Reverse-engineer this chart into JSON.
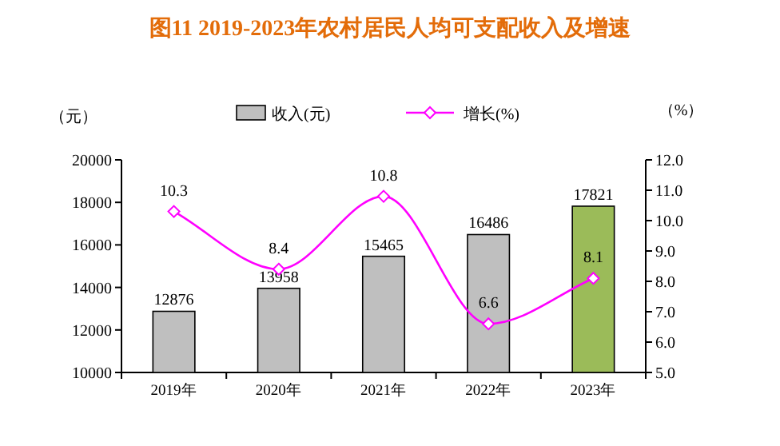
{
  "chart_data": {
    "type": "bar",
    "title": "图11 2019-2023年农村居民人均可支配收入及增速",
    "ylabel": "（元）",
    "y2label": "（%）",
    "categories": [
      "2019年",
      "2020年",
      "2021年",
      "2022年",
      "2023年"
    ],
    "series": [
      {
        "name": "收入(元)",
        "color": "#bfbfbf",
        "colors": [
          "#bfbfbf",
          "#bfbfbf",
          "#bfbfbf",
          "#bfbfbf",
          "#9bbb59"
        ],
        "values": [
          12876,
          13958,
          15465,
          16486,
          17821
        ]
      },
      {
        "name": "增长(%)",
        "type": "line",
        "axis": "y2",
        "color": "#ff00ff",
        "marker": "diamond",
        "values": [
          10.3,
          8.4,
          10.8,
          6.6,
          8.1
        ]
      }
    ],
    "ylim": [
      10000,
      20000
    ],
    "yticks": [
      10000,
      12000,
      14000,
      16000,
      18000,
      20000
    ],
    "y2lim": [
      5,
      12
    ],
    "y2ticks": [
      {
        "value": 5,
        "label": "5.0"
      },
      {
        "value": 6,
        "label": "6.0"
      },
      {
        "value": 7,
        "label": "7.0"
      },
      {
        "value": 8,
        "label": "8.0"
      },
      {
        "value": 9,
        "label": "9.0"
      },
      {
        "value": 10,
        "label": "10.0"
      },
      {
        "value": 11,
        "label": "11.0"
      },
      {
        "value": 12,
        "label": "12.0"
      }
    ],
    "data_labels": true,
    "legend": "top",
    "grid": false
  }
}
